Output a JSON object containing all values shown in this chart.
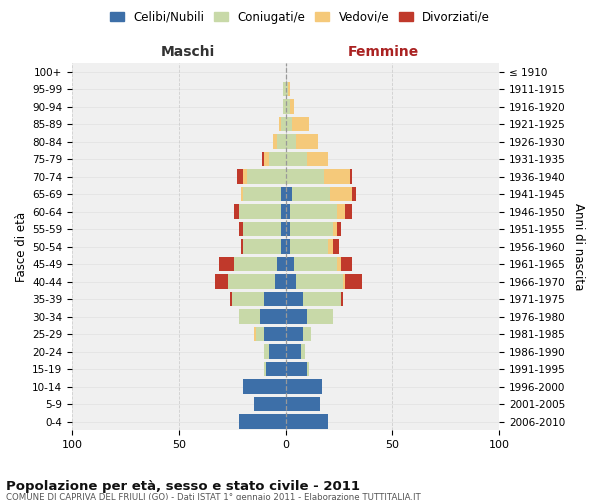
{
  "age_groups": [
    "0-4",
    "5-9",
    "10-14",
    "15-19",
    "20-24",
    "25-29",
    "30-34",
    "35-39",
    "40-44",
    "45-49",
    "50-54",
    "55-59",
    "60-64",
    "65-69",
    "70-74",
    "75-79",
    "80-84",
    "85-89",
    "90-94",
    "95-99",
    "100+"
  ],
  "birth_years": [
    "2006-2010",
    "2001-2005",
    "1996-2000",
    "1991-1995",
    "1986-1990",
    "1981-1985",
    "1976-1980",
    "1971-1975",
    "1966-1970",
    "1961-1965",
    "1956-1960",
    "1951-1955",
    "1946-1950",
    "1941-1945",
    "1936-1940",
    "1931-1935",
    "1926-1930",
    "1921-1925",
    "1916-1920",
    "1911-1915",
    "≤ 1910"
  ],
  "male": {
    "celibi": [
      22,
      15,
      20,
      9,
      8,
      10,
      12,
      10,
      5,
      4,
      2,
      2,
      2,
      2,
      0,
      0,
      0,
      0,
      0,
      0,
      0
    ],
    "coniugati": [
      0,
      0,
      0,
      1,
      2,
      4,
      10,
      15,
      22,
      20,
      18,
      18,
      20,
      18,
      18,
      8,
      4,
      2,
      1,
      1,
      0
    ],
    "vedovi": [
      0,
      0,
      0,
      0,
      0,
      1,
      0,
      0,
      0,
      0,
      0,
      0,
      0,
      1,
      2,
      2,
      2,
      1,
      0,
      0,
      0
    ],
    "divorziati": [
      0,
      0,
      0,
      0,
      0,
      0,
      0,
      1,
      6,
      7,
      1,
      2,
      2,
      0,
      3,
      1,
      0,
      0,
      0,
      0,
      0
    ]
  },
  "female": {
    "nubili": [
      20,
      16,
      17,
      10,
      7,
      8,
      10,
      8,
      5,
      4,
      2,
      2,
      2,
      3,
      0,
      0,
      0,
      0,
      0,
      0,
      0
    ],
    "coniugate": [
      0,
      0,
      0,
      1,
      2,
      4,
      12,
      18,
      22,
      20,
      18,
      20,
      22,
      18,
      18,
      10,
      5,
      3,
      2,
      1,
      0
    ],
    "vedove": [
      0,
      0,
      0,
      0,
      0,
      0,
      0,
      0,
      1,
      2,
      2,
      2,
      4,
      10,
      12,
      10,
      10,
      8,
      2,
      1,
      0
    ],
    "divorziate": [
      0,
      0,
      0,
      0,
      0,
      0,
      0,
      1,
      8,
      5,
      3,
      2,
      3,
      2,
      1,
      0,
      0,
      0,
      0,
      0,
      0
    ]
  },
  "colors": {
    "celibi": "#3d6fa8",
    "coniugati": "#c8d9a8",
    "vedovi": "#f5c97a",
    "divorziati": "#c0392b"
  },
  "title": "Popolazione per età, sesso e stato civile - 2011",
  "subtitle": "COMUNE DI CAPRIVA DEL FRIULI (GO) - Dati ISTAT 1° gennaio 2011 - Elaborazione TUTTITALIA.IT",
  "xlabel_left": "Maschi",
  "xlabel_right": "Femmine",
  "ylabel_left": "Fasce di età",
  "ylabel_right": "Anni di nascita",
  "xlim": 100,
  "legend_labels": [
    "Celibi/Nubili",
    "Coniugati/e",
    "Vedovi/e",
    "Divorziati/e"
  ],
  "bg_color": "#ffffff",
  "plot_bg": "#f0f0f0",
  "grid_color": "#cccccc"
}
